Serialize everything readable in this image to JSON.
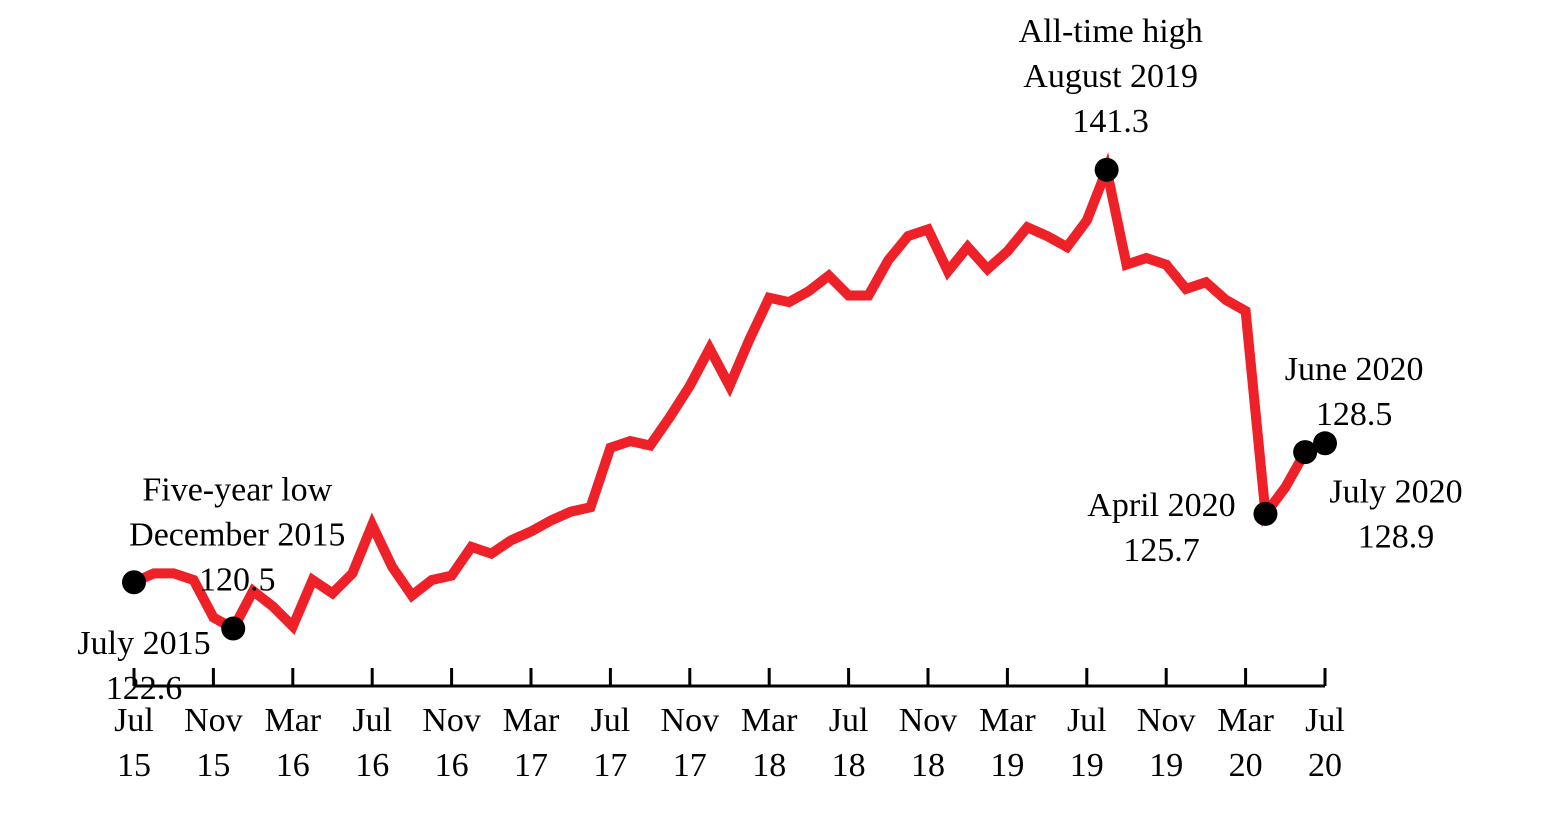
{
  "chart_data": {
    "type": "line",
    "x_unit": "month",
    "x": [
      "2015-07",
      "2015-08",
      "2015-09",
      "2015-10",
      "2015-11",
      "2015-12",
      "2016-01",
      "2016-02",
      "2016-03",
      "2016-04",
      "2016-05",
      "2016-06",
      "2016-07",
      "2016-08",
      "2016-09",
      "2016-10",
      "2016-11",
      "2016-12",
      "2017-01",
      "2017-02",
      "2017-03",
      "2017-04",
      "2017-05",
      "2017-06",
      "2017-07",
      "2017-08",
      "2017-09",
      "2017-10",
      "2017-11",
      "2017-12",
      "2018-01",
      "2018-02",
      "2018-03",
      "2018-04",
      "2018-05",
      "2018-06",
      "2018-07",
      "2018-08",
      "2018-09",
      "2018-10",
      "2018-11",
      "2018-12",
      "2019-01",
      "2019-02",
      "2019-03",
      "2019-04",
      "2019-05",
      "2019-06",
      "2019-07",
      "2019-08",
      "2019-09",
      "2019-10",
      "2019-11",
      "2019-12",
      "2020-01",
      "2020-02",
      "2020-03",
      "2020-04",
      "2020-05",
      "2020-06",
      "2020-07"
    ],
    "series": [
      {
        "color": "#ee2028",
        "values": [
          122.6,
          123.0,
          123.0,
          122.7,
          121.0,
          120.5,
          122.2,
          121.5,
          120.6,
          122.7,
          122.1,
          123.0,
          125.2,
          123.3,
          122.0,
          122.7,
          122.9,
          124.2,
          123.9,
          124.5,
          124.9,
          125.4,
          125.8,
          126.0,
          128.7,
          129.0,
          128.8,
          130.1,
          131.5,
          133.2,
          131.5,
          133.6,
          135.5,
          135.3,
          135.8,
          136.5,
          135.6,
          135.6,
          137.2,
          138.3,
          138.6,
          136.7,
          137.8,
          136.8,
          137.6,
          138.7,
          138.3,
          137.8,
          139.0,
          141.3,
          137.0,
          137.3,
          137.0,
          135.9,
          136.2,
          135.4,
          134.9,
          125.7,
          126.9,
          128.5,
          128.9
        ]
      }
    ],
    "ylim": [
      112,
      149
    ],
    "grid": false,
    "ticks": [
      {
        "month": "2015-07",
        "line1": "Jul",
        "line2": "15"
      },
      {
        "month": "2015-11",
        "line1": "Nov",
        "line2": "15"
      },
      {
        "month": "2016-03",
        "line1": "Mar",
        "line2": "16"
      },
      {
        "month": "2016-07",
        "line1": "Jul",
        "line2": "16"
      },
      {
        "month": "2016-11",
        "line1": "Nov",
        "line2": "16"
      },
      {
        "month": "2017-03",
        "line1": "Mar",
        "line2": "17"
      },
      {
        "month": "2017-07",
        "line1": "Jul",
        "line2": "17"
      },
      {
        "month": "2017-11",
        "line1": "Nov",
        "line2": "17"
      },
      {
        "month": "2018-03",
        "line1": "Mar",
        "line2": "18"
      },
      {
        "month": "2018-07",
        "line1": "Jul",
        "line2": "18"
      },
      {
        "month": "2018-11",
        "line1": "Nov",
        "line2": "18"
      },
      {
        "month": "2019-03",
        "line1": "Mar",
        "line2": "19"
      },
      {
        "month": "2019-07",
        "line1": "Jul",
        "line2": "19"
      },
      {
        "month": "2019-11",
        "line1": "Nov",
        "line2": "19"
      },
      {
        "month": "2020-03",
        "line1": "Mar",
        "line2": "20"
      },
      {
        "month": "2020-07",
        "line1": "Jul",
        "line2": "20"
      }
    ],
    "annotations": [
      {
        "month": "2015-07",
        "value": 122.6,
        "lines": [
          "July 2015",
          "122.6"
        ],
        "placement": "below-left"
      },
      {
        "month": "2015-12",
        "value": 120.5,
        "lines": [
          "Five-year low",
          "December 2015",
          "120.5"
        ],
        "placement": "above"
      },
      {
        "month": "2019-08",
        "value": 141.3,
        "lines": [
          "All-time high",
          "August 2019",
          "141.3"
        ],
        "placement": "above"
      },
      {
        "month": "2020-04",
        "value": 125.7,
        "lines": [
          "April 2020",
          "125.7"
        ],
        "placement": "left"
      },
      {
        "month": "2020-06",
        "value": 128.5,
        "lines": [
          "June 2020",
          "128.5"
        ],
        "placement": "above-right"
      },
      {
        "month": "2020-07",
        "value": 128.9,
        "lines": [
          "July 2020",
          "128.9"
        ],
        "placement": "below-right"
      }
    ]
  }
}
